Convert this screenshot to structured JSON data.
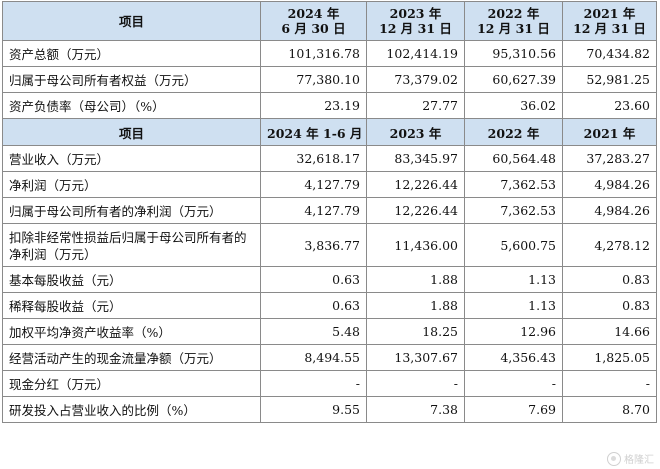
{
  "header1": {
    "label": "项目",
    "cols": [
      [
        "2024 年",
        "6 月 30 日"
      ],
      [
        "2023 年",
        "12 月 31 日"
      ],
      [
        "2022 年",
        "12 月 31 日"
      ],
      [
        "2021 年",
        "12 月 31 日"
      ]
    ]
  },
  "balance_rows": [
    {
      "label": "资产总额（万元）",
      "values": [
        "101,316.78",
        "102,414.19",
        "95,310.56",
        "70,434.82"
      ]
    },
    {
      "label": "归属于母公司所有者权益（万元）",
      "values": [
        "77,380.10",
        "73,379.02",
        "60,627.39",
        "52,981.25"
      ]
    },
    {
      "label": "资产负债率（母公司）（%）",
      "values": [
        "23.19",
        "27.77",
        "36.02",
        "23.60"
      ]
    }
  ],
  "header2": {
    "label": "项目",
    "cols": [
      "2024 年 1-6 月",
      "2023 年",
      "2022 年",
      "2021 年"
    ]
  },
  "income_rows": [
    {
      "label": "营业收入（万元）",
      "values": [
        "32,618.17",
        "83,345.97",
        "60,564.48",
        "37,283.27"
      ]
    },
    {
      "label": "净利润（万元）",
      "values": [
        "4,127.79",
        "12,226.44",
        "7,362.53",
        "4,984.26"
      ]
    },
    {
      "label": "归属于母公司所有者的净利润（万元）",
      "values": [
        "4,127.79",
        "12,226.44",
        "7,362.53",
        "4,984.26"
      ]
    },
    {
      "label": "扣除非经常性损益后归属于母公司所有者的净利润（万元）",
      "values": [
        "3,836.77",
        "11,436.00",
        "5,600.75",
        "4,278.12"
      ],
      "tall": true
    },
    {
      "label": "基本每股收益（元）",
      "values": [
        "0.63",
        "1.88",
        "1.13",
        "0.83"
      ]
    },
    {
      "label": "稀释每股收益（元）",
      "values": [
        "0.63",
        "1.88",
        "1.13",
        "0.83"
      ]
    },
    {
      "label": "加权平均净资产收益率（%）",
      "values": [
        "5.48",
        "18.25",
        "12.96",
        "14.66"
      ]
    },
    {
      "label": "经营活动产生的现金流量净额（万元）",
      "values": [
        "8,494.55",
        "13,307.67",
        "4,356.43",
        "1,825.05"
      ]
    },
    {
      "label": "现金分红（万元）",
      "values": [
        "-",
        "-",
        "-",
        "-"
      ]
    },
    {
      "label": "研发投入占营业收入的比例（%）",
      "values": [
        "9.55",
        "7.38",
        "7.69",
        "8.70"
      ]
    }
  ],
  "watermark": "格隆汇"
}
